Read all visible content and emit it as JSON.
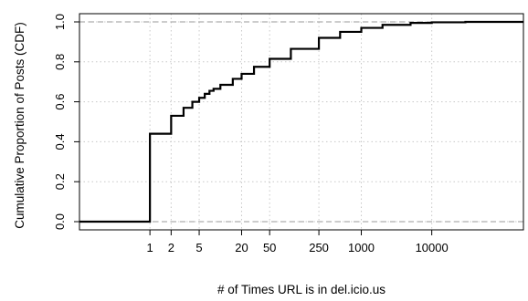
{
  "chart_data": {
    "type": "line",
    "chart_subtype": "step-cdf",
    "xlabel": "# of Times URL is in del.icio.us",
    "ylabel": "Cumulative Proportion of Posts (CDF)",
    "x_scale": "log",
    "xlim": [
      0.1,
      200000
    ],
    "ylim": [
      0.0,
      1.0
    ],
    "x_ticks": [
      1,
      2,
      5,
      20,
      50,
      250,
      1000,
      10000
    ],
    "x_tick_labels": [
      "1",
      "2",
      "5",
      "20",
      "50",
      "250",
      "1000",
      "10000"
    ],
    "y_ticks": [
      0.0,
      0.2,
      0.4,
      0.6,
      0.8,
      1.0
    ],
    "y_tick_labels": [
      "0.0",
      "0.2",
      "0.4",
      "0.6",
      "0.8",
      "1.0"
    ],
    "reference_lines": [
      0.0,
      1.0
    ],
    "grid": true,
    "series": [
      {
        "color": "#000000",
        "x": [
          0.1,
          1,
          2,
          3,
          4,
          5,
          6,
          7,
          8,
          10,
          15,
          20,
          30,
          50,
          100,
          250,
          500,
          1000,
          2000,
          5000,
          10000,
          30000,
          200000
        ],
        "y": [
          0.0,
          0.44,
          0.53,
          0.57,
          0.6,
          0.62,
          0.64,
          0.655,
          0.665,
          0.685,
          0.715,
          0.74,
          0.775,
          0.815,
          0.865,
          0.92,
          0.95,
          0.97,
          0.985,
          0.995,
          0.998,
          1.0,
          1.0
        ]
      }
    ]
  }
}
